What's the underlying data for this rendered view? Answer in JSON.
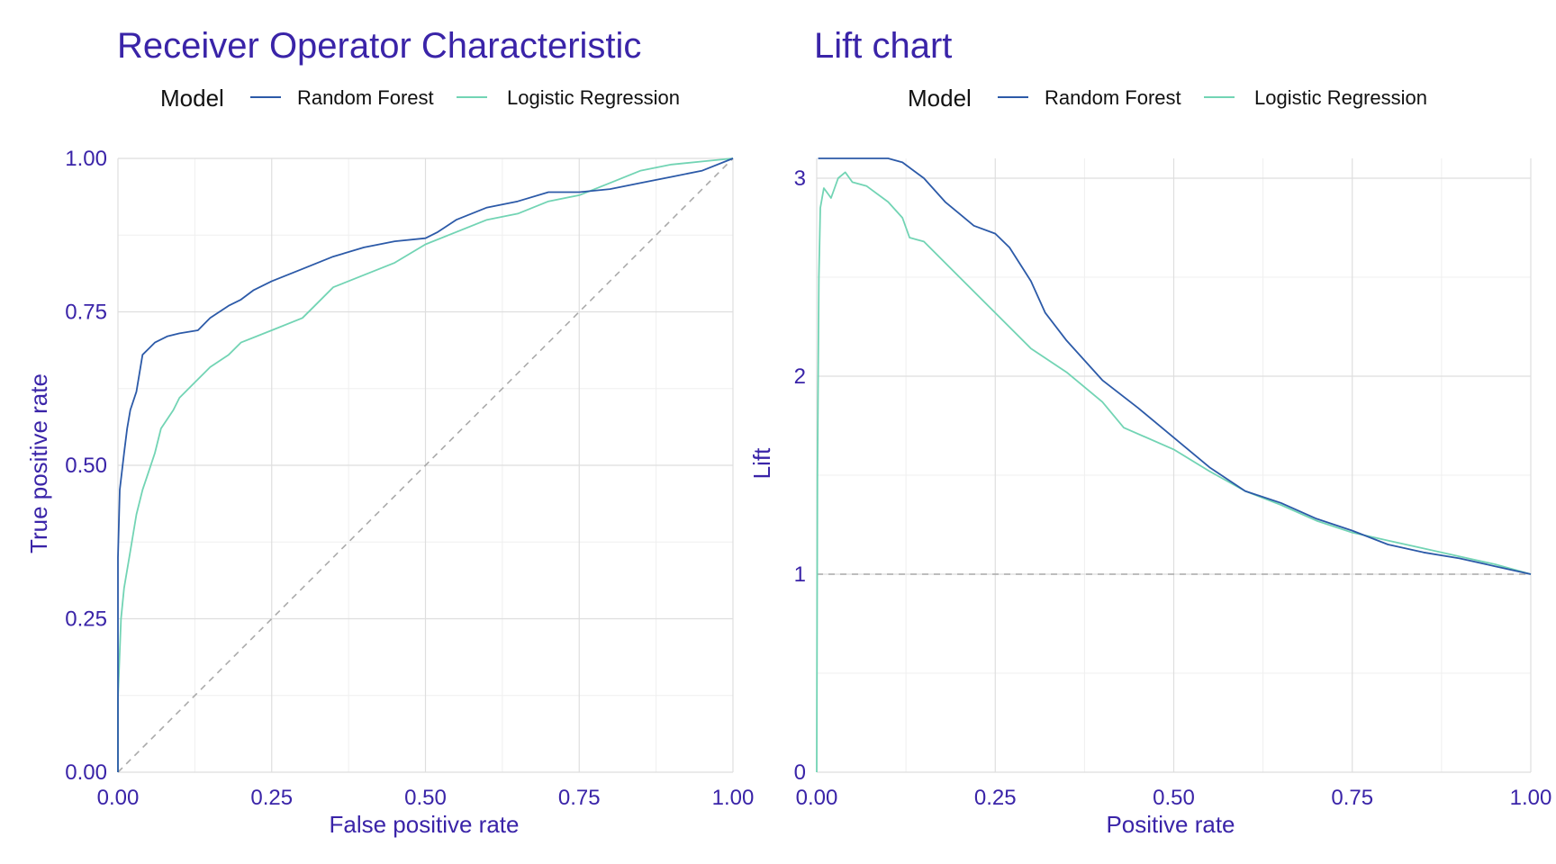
{
  "colors": {
    "title": "#3a24a8",
    "axis_text": "#3a24a8",
    "legend_text": "#111111",
    "grid_major": "#dedede",
    "grid_minor": "#efefef",
    "reference_line": "#aaaaaa",
    "random_forest": "#2c5aa8",
    "logistic_regression": "#72d4b4"
  },
  "legend": {
    "title": "Model",
    "items": [
      "Random Forest",
      "Logistic Regression"
    ]
  },
  "chart_data": [
    {
      "type": "line",
      "title": "Receiver Operator Characteristic",
      "xlabel": "False positive rate",
      "ylabel": "True positive rate",
      "xlim": [
        0,
        1
      ],
      "ylim": [
        0,
        1
      ],
      "xticks": [
        0,
        0.25,
        0.5,
        0.75,
        1
      ],
      "xtick_labels": [
        "0.00",
        "0.25",
        "0.50",
        "0.75",
        "1.00"
      ],
      "yticks": [
        0,
        0.25,
        0.5,
        0.75,
        1
      ],
      "ytick_labels": [
        "0.00",
        "0.25",
        "0.50",
        "0.75",
        "1.00"
      ],
      "grid": true,
      "legend_position": "top",
      "reference_line": {
        "style": "dashed",
        "points": [
          [
            0,
            0
          ],
          [
            1,
            1
          ]
        ]
      },
      "series": [
        {
          "name": "Random Forest",
          "color_key": "random_forest",
          "points": [
            [
              0,
              0
            ],
            [
              0,
              0.35
            ],
            [
              0.003,
              0.46
            ],
            [
              0.01,
              0.52
            ],
            [
              0.015,
              0.56
            ],
            [
              0.02,
              0.59
            ],
            [
              0.03,
              0.62
            ],
            [
              0.035,
              0.65
            ],
            [
              0.04,
              0.68
            ],
            [
              0.05,
              0.69
            ],
            [
              0.06,
              0.7
            ],
            [
              0.08,
              0.71
            ],
            [
              0.1,
              0.715
            ],
            [
              0.13,
              0.72
            ],
            [
              0.15,
              0.74
            ],
            [
              0.18,
              0.76
            ],
            [
              0.2,
              0.77
            ],
            [
              0.22,
              0.785
            ],
            [
              0.25,
              0.8
            ],
            [
              0.3,
              0.82
            ],
            [
              0.35,
              0.84
            ],
            [
              0.4,
              0.855
            ],
            [
              0.45,
              0.865
            ],
            [
              0.5,
              0.87
            ],
            [
              0.52,
              0.88
            ],
            [
              0.55,
              0.9
            ],
            [
              0.6,
              0.92
            ],
            [
              0.65,
              0.93
            ],
            [
              0.7,
              0.945
            ],
            [
              0.75,
              0.945
            ],
            [
              0.8,
              0.95
            ],
            [
              0.85,
              0.96
            ],
            [
              0.9,
              0.97
            ],
            [
              0.95,
              0.98
            ],
            [
              1,
              1
            ]
          ]
        },
        {
          "name": "Logistic Regression",
          "color_key": "logistic_regression",
          "points": [
            [
              0,
              0
            ],
            [
              0,
              0.12
            ],
            [
              0.005,
              0.25
            ],
            [
              0.01,
              0.3
            ],
            [
              0.02,
              0.36
            ],
            [
              0.03,
              0.42
            ],
            [
              0.04,
              0.46
            ],
            [
              0.05,
              0.49
            ],
            [
              0.06,
              0.52
            ],
            [
              0.07,
              0.56
            ],
            [
              0.09,
              0.59
            ],
            [
              0.1,
              0.61
            ],
            [
              0.12,
              0.63
            ],
            [
              0.15,
              0.66
            ],
            [
              0.18,
              0.68
            ],
            [
              0.2,
              0.7
            ],
            [
              0.25,
              0.72
            ],
            [
              0.3,
              0.74
            ],
            [
              0.32,
              0.76
            ],
            [
              0.35,
              0.79
            ],
            [
              0.4,
              0.81
            ],
            [
              0.45,
              0.83
            ],
            [
              0.5,
              0.86
            ],
            [
              0.55,
              0.88
            ],
            [
              0.6,
              0.9
            ],
            [
              0.65,
              0.91
            ],
            [
              0.7,
              0.93
            ],
            [
              0.75,
              0.94
            ],
            [
              0.8,
              0.96
            ],
            [
              0.85,
              0.98
            ],
            [
              0.9,
              0.99
            ],
            [
              0.95,
              0.995
            ],
            [
              1,
              1
            ]
          ]
        }
      ]
    },
    {
      "type": "line",
      "title": "Lift chart",
      "xlabel": "Positive rate",
      "ylabel": "Lift",
      "xlim": [
        0,
        1
      ],
      "ylim": [
        0,
        3.1
      ],
      "xticks": [
        0,
        0.25,
        0.5,
        0.75,
        1
      ],
      "xtick_labels": [
        "0.00",
        "0.25",
        "0.50",
        "0.75",
        "1.00"
      ],
      "yticks": [
        0,
        1,
        2,
        3
      ],
      "ytick_labels": [
        "0",
        "1",
        "2",
        "3"
      ],
      "grid": true,
      "legend_position": "top",
      "reference_line": {
        "style": "dashed",
        "points": [
          [
            0,
            1
          ],
          [
            1,
            1
          ]
        ]
      },
      "series": [
        {
          "name": "Random Forest",
          "color_key": "random_forest",
          "points": [
            [
              0.002,
              3.1
            ],
            [
              0.05,
              3.1
            ],
            [
              0.1,
              3.1
            ],
            [
              0.12,
              3.08
            ],
            [
              0.15,
              3.0
            ],
            [
              0.18,
              2.88
            ],
            [
              0.2,
              2.82
            ],
            [
              0.22,
              2.76
            ],
            [
              0.25,
              2.72
            ],
            [
              0.27,
              2.65
            ],
            [
              0.3,
              2.48
            ],
            [
              0.32,
              2.32
            ],
            [
              0.35,
              2.18
            ],
            [
              0.4,
              1.98
            ],
            [
              0.45,
              1.84
            ],
            [
              0.5,
              1.69
            ],
            [
              0.55,
              1.54
            ],
            [
              0.6,
              1.42
            ],
            [
              0.65,
              1.36
            ],
            [
              0.7,
              1.28
            ],
            [
              0.75,
              1.22
            ],
            [
              0.8,
              1.15
            ],
            [
              0.85,
              1.11
            ],
            [
              0.9,
              1.08
            ],
            [
              0.95,
              1.04
            ],
            [
              1,
              1
            ]
          ]
        },
        {
          "name": "Logistic Regression",
          "color_key": "logistic_regression",
          "points": [
            [
              0,
              0
            ],
            [
              0.001,
              1.5
            ],
            [
              0.003,
              2.5
            ],
            [
              0.005,
              2.85
            ],
            [
              0.01,
              2.95
            ],
            [
              0.02,
              2.9
            ],
            [
              0.03,
              3.0
            ],
            [
              0.04,
              3.03
            ],
            [
              0.05,
              2.98
            ],
            [
              0.07,
              2.96
            ],
            [
              0.1,
              2.88
            ],
            [
              0.12,
              2.8
            ],
            [
              0.13,
              2.7
            ],
            [
              0.15,
              2.68
            ],
            [
              0.2,
              2.5
            ],
            [
              0.25,
              2.32
            ],
            [
              0.3,
              2.14
            ],
            [
              0.35,
              2.02
            ],
            [
              0.4,
              1.87
            ],
            [
              0.43,
              1.74
            ],
            [
              0.5,
              1.63
            ],
            [
              0.55,
              1.52
            ],
            [
              0.6,
              1.42
            ],
            [
              0.65,
              1.35
            ],
            [
              0.7,
              1.27
            ],
            [
              0.75,
              1.21
            ],
            [
              0.8,
              1.17
            ],
            [
              0.85,
              1.13
            ],
            [
              0.9,
              1.09
            ],
            [
              0.95,
              1.05
            ],
            [
              1,
              1
            ]
          ]
        }
      ]
    }
  ]
}
